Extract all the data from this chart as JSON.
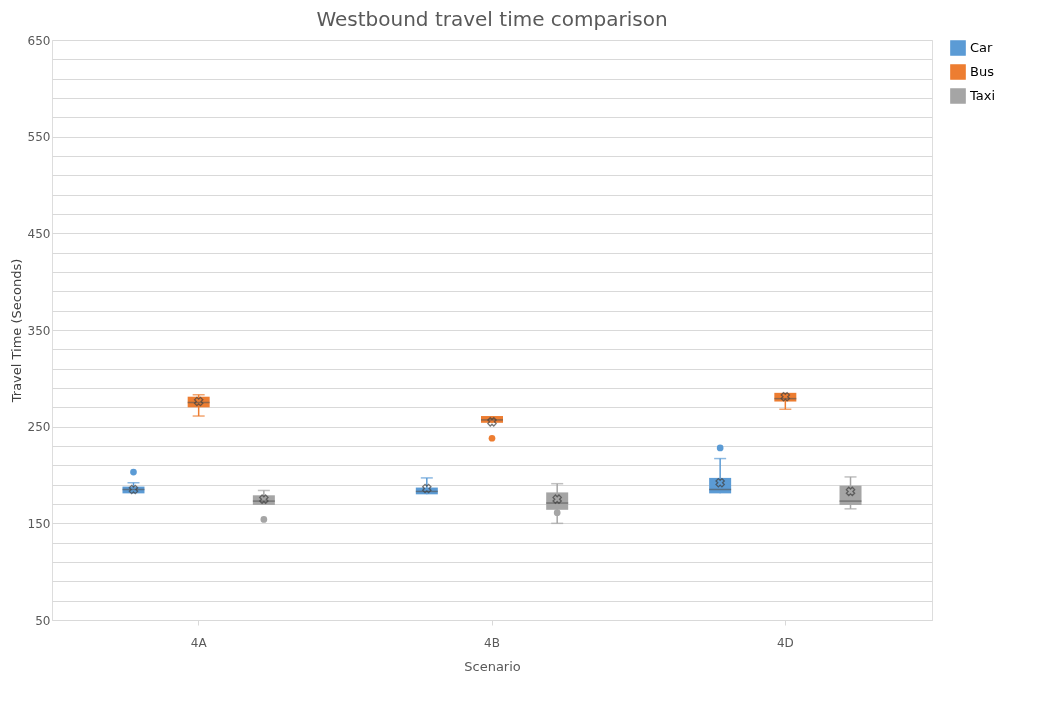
{
  "chart_data": {
    "type": "box",
    "title": "Westbound travel time comparison",
    "xlabel": "Scenario",
    "ylabel": "Travel Time (Seconds)",
    "categories": [
      "4A",
      "4B",
      "4D"
    ],
    "ylim": [
      50,
      650
    ],
    "yticks": [
      50,
      {
        "value": 70,
        "label": null
      },
      {
        "value": 90,
        "label": null
      },
      {
        "value": 110,
        "label": null
      },
      {
        "value": 130,
        "label": null
      },
      150,
      {
        "value": 170,
        "label": null
      },
      {
        "value": 190,
        "label": null
      },
      {
        "value": 210,
        "label": null
      },
      {
        "value": 230,
        "label": null
      },
      250,
      {
        "value": 270,
        "label": null
      },
      {
        "value": 290,
        "label": null
      },
      {
        "value": 310,
        "label": null
      },
      {
        "value": 330,
        "label": null
      },
      350,
      {
        "value": 370,
        "label": null
      },
      {
        "value": 390,
        "label": null
      },
      {
        "value": 410,
        "label": null
      },
      {
        "value": 430,
        "label": null
      },
      450,
      {
        "value": 470,
        "label": null
      },
      {
        "value": 490,
        "label": null
      },
      {
        "value": 510,
        "label": null
      },
      {
        "value": 530,
        "label": null
      },
      550,
      {
        "value": 570,
        "label": null
      },
      {
        "value": 590,
        "label": null
      },
      {
        "value": 610,
        "label": null
      },
      {
        "value": 630,
        "label": null
      },
      650
    ],
    "grid": "y",
    "legend": "right",
    "series": [
      {
        "name": "Car",
        "color": "#5b9bd5",
        "boxes": [
          {
            "low": 181,
            "q1": 181,
            "median": 185,
            "q3": 188,
            "high": 192,
            "mean": 185,
            "outliers": [
              203
            ]
          },
          {
            "low": 180,
            "q1": 180,
            "median": 183,
            "q3": 187,
            "high": 197,
            "mean": 186
          },
          {
            "low": 181,
            "q1": 181,
            "median": 185,
            "q3": 197,
            "high": 217,
            "mean": 192,
            "outliers": [
              228
            ]
          }
        ]
      },
      {
        "name": "Bus",
        "color": "#ed7d31",
        "boxes": [
          {
            "low": 261,
            "q1": 270,
            "median": 275,
            "q3": 281,
            "high": 283,
            "mean": 276
          },
          {
            "low": 254,
            "q1": 254,
            "median": 257,
            "q3": 261,
            "high": 261,
            "mean": 255,
            "outliers": [
              238
            ]
          },
          {
            "low": 268,
            "q1": 276,
            "median": 279,
            "q3": 285,
            "high": 285,
            "mean": 281
          }
        ]
      },
      {
        "name": "Taxi",
        "color": "#a5a5a5",
        "boxes": [
          {
            "low": 169,
            "q1": 169,
            "median": 173,
            "q3": 179,
            "high": 184,
            "mean": 175,
            "outliers": [
              154
            ]
          },
          {
            "low": 150,
            "q1": 164,
            "median": 171,
            "q3": 182,
            "high": 191,
            "mean": 175,
            "outliers": [
              161
            ]
          },
          {
            "low": 165,
            "q1": 169,
            "median": 173,
            "q3": 189,
            "high": 198,
            "mean": 183
          }
        ]
      }
    ]
  }
}
